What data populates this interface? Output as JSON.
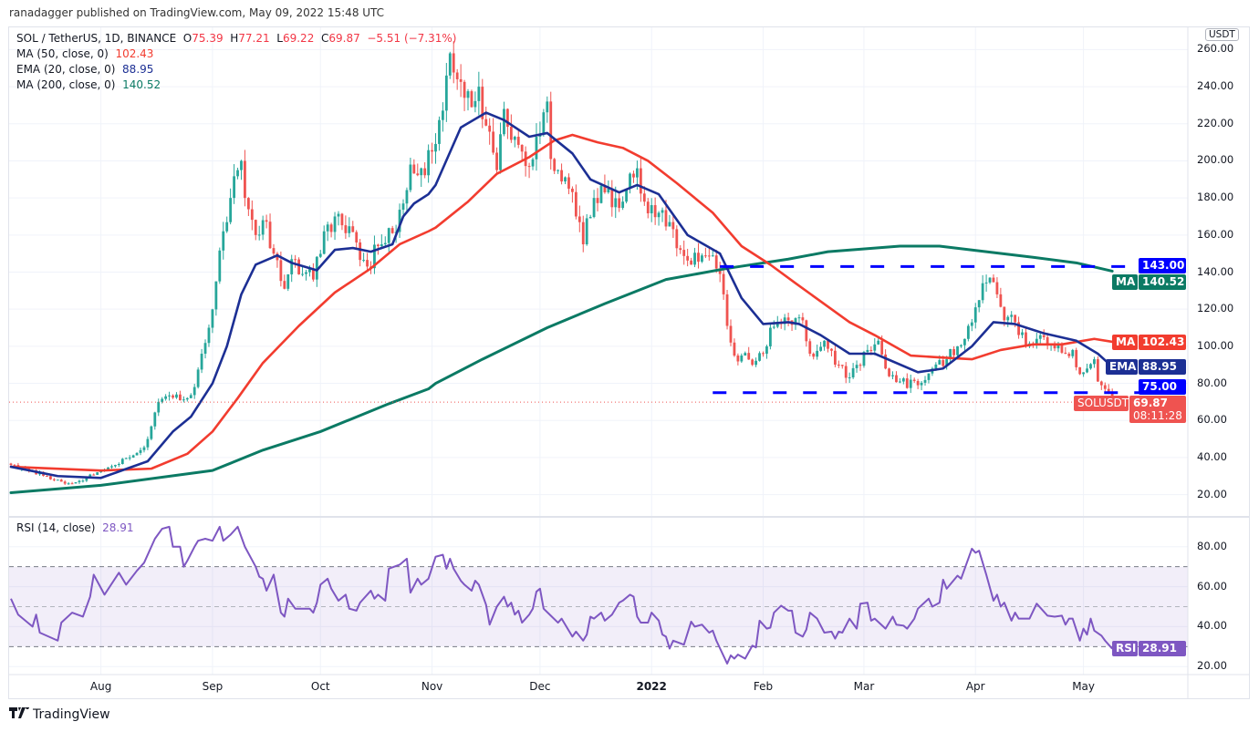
{
  "header": {
    "published": "ranadagger published on TradingView.com, May 09, 2022 15:48 UTC"
  },
  "legend": {
    "symbol": "SOL / TetherUS, 1D, BINANCE",
    "o_label": "O",
    "o": "75.39",
    "h_label": "H",
    "h": "77.21",
    "l_label": "L",
    "l": "69.22",
    "c_label": "C",
    "c": "69.87",
    "change": "−5.51 (−7.31%)",
    "indicators": [
      {
        "label": "MA (50, close, 0)",
        "value": "102.43",
        "color": "#f23c2f"
      },
      {
        "label": "EMA (20, close, 0)",
        "value": "88.95",
        "color": "#1c2f94"
      },
      {
        "label": "MA (200, close, 0)",
        "value": "140.52",
        "color": "#0b7a64"
      }
    ]
  },
  "rsi_legend": {
    "label": "RSI (14, close)",
    "value": "28.91",
    "color": "#7e57c2"
  },
  "axis": {
    "currency": "USDT",
    "price_ticks": [
      "20.00",
      "40.00",
      "60.00",
      "80.00",
      "100.00",
      "120.00",
      "140.00",
      "160.00",
      "180.00",
      "200.00",
      "220.00",
      "240.00",
      "260.00"
    ],
    "rsi_ticks": [
      "20.00",
      "40.00",
      "60.00",
      "80.00"
    ],
    "time_labels": [
      {
        "label": "Aug",
        "date": "2021-08-01"
      },
      {
        "label": "Sep",
        "date": "2021-09-01"
      },
      {
        "label": "Oct",
        "date": "2021-10-01"
      },
      {
        "label": "Nov",
        "date": "2021-11-01"
      },
      {
        "label": "Dec",
        "date": "2021-12-01"
      },
      {
        "label": "2022",
        "date": "2022-01-01",
        "bold": true
      },
      {
        "label": "Feb",
        "date": "2022-02-01"
      },
      {
        "label": "Mar",
        "date": "2022-03-01"
      },
      {
        "label": "Apr",
        "date": "2022-04-01"
      },
      {
        "label": "May",
        "date": "2022-05-01"
      }
    ]
  },
  "tags": {
    "resistance": {
      "value": "143.00",
      "color": "#0000ff"
    },
    "ma200": {
      "name": "MA",
      "value": "140.52",
      "color": "#0b7a64"
    },
    "ma50": {
      "name": "MA",
      "value": "102.43",
      "color": "#f23c2f"
    },
    "ema20": {
      "name": "EMA",
      "value": "88.95",
      "color": "#1c2f94"
    },
    "support": {
      "value": "75.00",
      "color": "#0000ff"
    },
    "last": {
      "name": "SOLUSDT",
      "value": "69.87",
      "countdown": "08:11:28",
      "color": "#ef5350"
    },
    "rsi": {
      "name": "RSI",
      "value": "28.91",
      "color": "#7e57c2"
    }
  },
  "footer": {
    "brand": "TradingView"
  },
  "chart_data": {
    "type": "candlestick",
    "xlim": [
      "2021-07-07",
      "2022-05-30"
    ],
    "ylim": [
      8,
      272
    ],
    "grid": true,
    "colors": {
      "up": "#26a69a",
      "down": "#ef5350",
      "levels": "#0000ff"
    },
    "price_close": {
      "dates": [
        "2021-07-07",
        "2021-07-12",
        "2021-07-17",
        "2021-07-21",
        "2021-07-24",
        "2021-07-28",
        "2021-08-01",
        "2021-08-05",
        "2021-08-09",
        "2021-08-12",
        "2021-08-14",
        "2021-08-17",
        "2021-08-19",
        "2021-08-22",
        "2021-08-25",
        "2021-08-27",
        "2021-08-29",
        "2021-08-31",
        "2021-09-02",
        "2021-09-04",
        "2021-09-06",
        "2021-09-08",
        "2021-09-09",
        "2021-09-10",
        "2021-09-13",
        "2021-09-15",
        "2021-09-18",
        "2021-09-21",
        "2021-09-23",
        "2021-09-26",
        "2021-09-29",
        "2021-10-02",
        "2021-10-05",
        "2021-10-08",
        "2021-10-11",
        "2021-10-14",
        "2021-10-17",
        "2021-10-21",
        "2021-10-24",
        "2021-10-26",
        "2021-10-29",
        "2021-11-01",
        "2021-11-03",
        "2021-11-05",
        "2021-11-06",
        "2021-11-08",
        "2021-11-10",
        "2021-11-12",
        "2021-11-14",
        "2021-11-16",
        "2021-11-19",
        "2021-11-21",
        "2021-11-24",
        "2021-11-26",
        "2021-11-28",
        "2021-11-30",
        "2021-12-03",
        "2021-12-04",
        "2021-12-06",
        "2021-12-09",
        "2021-12-11",
        "2021-12-13",
        "2021-12-16",
        "2021-12-19",
        "2021-12-21",
        "2021-12-25",
        "2021-12-28",
        "2021-12-30",
        "2022-01-03",
        "2022-01-06",
        "2022-01-09",
        "2022-01-12",
        "2022-01-15",
        "2022-01-18",
        "2022-01-20",
        "2022-01-21",
        "2022-01-22",
        "2022-01-24",
        "2022-01-26",
        "2022-01-29",
        "2022-02-01",
        "2022-02-03",
        "2022-02-06",
        "2022-02-08",
        "2022-02-12",
        "2022-02-14",
        "2022-02-18",
        "2022-02-22",
        "2022-02-24",
        "2022-02-27",
        "2022-03-02",
        "2022-03-05",
        "2022-03-07",
        "2022-03-11",
        "2022-03-16",
        "2022-03-20",
        "2022-03-24",
        "2022-03-27",
        "2022-03-30",
        "2022-04-01",
        "2022-04-03",
        "2022-04-05",
        "2022-04-07",
        "2022-04-09",
        "2022-04-12",
        "2022-04-15",
        "2022-04-19",
        "2022-04-22",
        "2022-04-24",
        "2022-04-26",
        "2022-04-28",
        "2022-04-30",
        "2022-05-02",
        "2022-05-04",
        "2022-05-05",
        "2022-05-06",
        "2022-05-07",
        "2022-05-08",
        "2022-05-09"
      ],
      "values": [
        36,
        33,
        30,
        27,
        26,
        29,
        33,
        36,
        40,
        44,
        50,
        70,
        73,
        74,
        72,
        78,
        96,
        110,
        135,
        162,
        180,
        195,
        200,
        180,
        160,
        168,
        150,
        131,
        147,
        139,
        136,
        162,
        170,
        161,
        156,
        143,
        154,
        161,
        177,
        198,
        196,
        205,
        222,
        246,
        258,
        244,
        234,
        229,
        240,
        219,
        195,
        228,
        213,
        205,
        197,
        213,
        232,
        201,
        195,
        185,
        170,
        155,
        180,
        183,
        175,
        185,
        196,
        178,
        172,
        167,
        152,
        144,
        149,
        149,
        139,
        128,
        111,
        95,
        95,
        90,
        96,
        110,
        112,
        114,
        114,
        96,
        103,
        90,
        83,
        90,
        98,
        103,
        88,
        81,
        79,
        88,
        93,
        100,
        111,
        121,
        134,
        137,
        128,
        114,
        113,
        100,
        106,
        101,
        101,
        96,
        98,
        85,
        88,
        93,
        81,
        79,
        77,
        75.39,
        69.87
      ]
    },
    "last_candle": {
      "date": "2022-05-09",
      "open": 75.39,
      "high": 77.21,
      "low": 69.22,
      "close": 69.87,
      "change": -5.51,
      "change_pct": -7.31
    },
    "ma50": {
      "dates": [
        "2021-07-07",
        "2021-08-01",
        "2021-08-15",
        "2021-08-25",
        "2021-09-01",
        "2021-09-08",
        "2021-09-15",
        "2021-09-25",
        "2021-10-05",
        "2021-10-15",
        "2021-10-23",
        "2021-10-31",
        "2021-11-02",
        "2021-11-11",
        "2021-11-19",
        "2021-11-28",
        "2021-12-05",
        "2021-12-10",
        "2021-12-17",
        "2021-12-24",
        "2021-12-31",
        "2022-01-08",
        "2022-01-18",
        "2022-01-26",
        "2022-02-03",
        "2022-02-10",
        "2022-02-25",
        "2022-03-04",
        "2022-03-14",
        "2022-03-22",
        "2022-03-31",
        "2022-04-08",
        "2022-04-17",
        "2022-04-25",
        "2022-05-04",
        "2022-05-09"
      ],
      "values": [
        35,
        33,
        34,
        42,
        54,
        72,
        91,
        111,
        129,
        142,
        155,
        162,
        164,
        178,
        193,
        202,
        211,
        214,
        210,
        207,
        200,
        188,
        172,
        154,
        144,
        134,
        113,
        106,
        95,
        94,
        93,
        98,
        101,
        101,
        104,
        102.43
      ]
    },
    "ema20": {
      "dates": [
        "2021-07-07",
        "2021-07-20",
        "2021-08-01",
        "2021-08-14",
        "2021-08-21",
        "2021-08-26",
        "2021-09-01",
        "2021-09-05",
        "2021-09-09",
        "2021-09-13",
        "2021-09-19",
        "2021-09-23",
        "2021-09-30",
        "2021-10-05",
        "2021-10-10",
        "2021-10-15",
        "2021-10-21",
        "2021-10-24",
        "2021-10-27",
        "2021-10-31",
        "2021-11-02",
        "2021-11-09",
        "2021-11-16",
        "2021-11-21",
        "2021-11-28",
        "2021-12-03",
        "2021-12-10",
        "2021-12-15",
        "2021-12-23",
        "2021-12-28",
        "2022-01-03",
        "2022-01-11",
        "2022-01-20",
        "2022-01-26",
        "2022-02-01",
        "2022-02-08",
        "2022-02-11",
        "2022-02-17",
        "2022-02-25",
        "2022-03-04",
        "2022-03-16",
        "2022-03-23",
        "2022-03-31",
        "2022-04-06",
        "2022-04-12",
        "2022-04-20",
        "2022-04-29",
        "2022-05-05",
        "2022-05-09"
      ],
      "values": [
        35,
        30,
        29,
        38,
        54,
        62,
        80,
        100,
        128,
        144,
        149,
        145,
        141,
        152,
        153,
        151,
        155,
        170,
        177,
        182,
        187,
        218,
        226,
        222,
        213,
        215,
        204,
        190,
        183,
        187,
        182,
        160,
        150,
        126,
        112,
        113,
        112,
        106,
        96,
        96,
        86,
        88,
        100,
        113,
        112,
        107,
        103,
        96,
        88.95
      ]
    },
    "ma200": {
      "dates": [
        "2021-07-07",
        "2021-08-01",
        "2021-09-01",
        "2021-09-15",
        "2021-10-01",
        "2021-10-20",
        "2021-10-31",
        "2021-11-02",
        "2021-11-15",
        "2021-12-03",
        "2021-12-19",
        "2022-01-05",
        "2022-01-22",
        "2022-02-08",
        "2022-02-19",
        "2022-03-11",
        "2022-03-22",
        "2022-04-04",
        "2022-04-17",
        "2022-04-29",
        "2022-05-09"
      ],
      "values": [
        21,
        25,
        33,
        44,
        54,
        69,
        77,
        80,
        93,
        110,
        123,
        136,
        142,
        147,
        151,
        154,
        154,
        151,
        148,
        145,
        140.52
      ]
    },
    "levels": [
      {
        "value": 143,
        "from": "2022-01-20"
      },
      {
        "value": 75,
        "from": "2022-01-18"
      }
    ],
    "rsi": {
      "ylim": [
        16,
        94.5
      ],
      "bands": [
        30,
        50,
        70
      ],
      "dates": [
        "2021-07-07",
        "2021-07-09",
        "2021-07-13",
        "2021-07-14",
        "2021-07-15",
        "2021-07-20",
        "2021-07-21",
        "2021-07-24",
        "2021-07-27",
        "2021-07-29",
        "2021-07-30",
        "2021-08-02",
        "2021-08-06",
        "2021-08-08",
        "2021-08-11",
        "2021-08-13",
        "2021-08-16",
        "2021-08-18",
        "2021-08-20",
        "2021-08-21",
        "2021-08-23",
        "2021-08-24",
        "2021-08-25",
        "2021-08-27",
        "2021-08-28",
        "2021-08-30",
        "2021-09-01",
        "2021-09-03",
        "2021-09-04",
        "2021-09-06",
        "2021-09-08",
        "2021-09-10",
        "2021-09-13",
        "2021-09-14",
        "2021-09-15",
        "2021-09-16",
        "2021-09-18",
        "2021-09-20",
        "2021-09-21",
        "2021-09-22",
        "2021-09-24",
        "2021-09-28",
        "2021-09-29",
        "2021-09-30",
        "2021-10-01",
        "2021-10-03",
        "2021-10-04",
        "2021-10-06",
        "2021-10-08",
        "2021-10-09",
        "2021-10-11",
        "2021-10-12",
        "2021-10-15",
        "2021-10-16",
        "2021-10-17",
        "2021-10-19",
        "2021-10-20",
        "2021-10-23",
        "2021-10-25",
        "2021-10-26",
        "2021-10-28",
        "2021-10-29",
        "2021-10-31",
        "2021-11-02",
        "2021-11-04",
        "2021-11-05",
        "2021-11-06",
        "2021-11-07",
        "2021-11-09",
        "2021-11-10",
        "2021-11-12",
        "2021-11-13",
        "2021-11-14",
        "2021-11-16",
        "2021-11-17",
        "2021-11-19",
        "2021-11-21",
        "2021-11-22",
        "2021-11-23",
        "2021-11-24",
        "2021-11-25",
        "2021-11-26",
        "2021-11-28",
        "2021-11-29",
        "2021-11-30",
        "2021-12-01",
        "2021-12-02",
        "2021-12-04",
        "2021-12-06",
        "2021-12-07",
        "2021-12-10",
        "2021-12-11",
        "2021-12-13",
        "2021-12-14",
        "2021-12-15",
        "2021-12-16",
        "2021-12-18",
        "2021-12-19",
        "2021-12-21",
        "2021-12-23",
        "2021-12-24",
        "2021-12-26",
        "2021-12-27",
        "2021-12-28",
        "2021-12-29",
        "2021-12-31",
        "2022-01-01",
        "2022-01-03",
        "2022-01-04",
        "2022-01-05",
        "2022-01-06",
        "2022-01-07",
        "2022-01-10",
        "2022-01-12",
        "2022-01-13",
        "2022-01-15",
        "2022-01-17",
        "2022-01-18",
        "2022-01-19",
        "2022-01-22",
        "2022-01-23",
        "2022-01-24",
        "2022-01-25",
        "2022-01-27",
        "2022-01-29",
        "2022-01-30",
        "2022-01-31",
        "2022-02-02",
        "2022-02-03",
        "2022-02-04",
        "2022-02-06",
        "2022-02-08",
        "2022-02-09",
        "2022-02-10",
        "2022-02-12",
        "2022-02-13",
        "2022-02-14",
        "2022-02-16",
        "2022-02-18",
        "2022-02-20",
        "2022-02-21",
        "2022-02-22",
        "2022-02-23",
        "2022-02-25",
        "2022-02-27",
        "2022-02-28",
        "2022-03-02",
        "2022-03-03",
        "2022-03-04",
        "2022-03-07",
        "2022-03-09",
        "2022-03-10",
        "2022-03-12",
        "2022-03-13",
        "2022-03-15",
        "2022-03-16",
        "2022-03-19",
        "2022-03-20",
        "2022-03-22",
        "2022-03-23",
        "2022-03-24",
        "2022-03-27",
        "2022-03-28",
        "2022-03-30",
        "2022-03-31",
        "2022-04-01",
        "2022-04-02",
        "2022-04-04",
        "2022-04-06",
        "2022-04-07",
        "2022-04-08",
        "2022-04-09",
        "2022-04-11",
        "2022-04-12",
        "2022-04-13",
        "2022-04-16",
        "2022-04-18",
        "2022-04-21",
        "2022-04-23",
        "2022-04-25",
        "2022-04-26",
        "2022-04-27",
        "2022-04-28",
        "2022-04-30",
        "2022-05-01",
        "2022-05-02",
        "2022-05-03",
        "2022-05-04",
        "2022-05-06",
        "2022-05-07",
        "2022-05-09"
      ],
      "values": [
        54,
        46,
        40,
        46,
        37,
        33,
        42,
        47,
        45,
        55,
        66,
        56,
        67,
        61,
        68,
        72,
        84,
        89,
        90,
        80,
        80,
        70,
        73,
        80,
        83,
        84,
        83,
        90,
        83,
        86,
        90,
        80,
        70,
        65,
        64,
        58,
        66,
        47,
        45,
        54,
        49,
        49,
        47,
        52,
        61,
        64,
        59,
        53,
        56,
        49,
        48,
        52,
        58,
        54,
        56,
        53,
        69,
        71,
        74,
        57,
        64,
        61,
        64,
        75,
        76,
        69,
        74,
        69,
        63,
        61,
        58,
        63,
        61,
        51,
        41,
        50,
        55,
        50,
        52,
        46,
        48,
        42,
        46,
        49,
        57.5,
        59,
        49,
        45.5,
        42,
        44,
        35,
        37.5,
        33,
        36,
        45,
        44,
        47,
        43,
        46,
        52,
        53,
        56,
        55,
        45,
        42,
        42,
        47,
        43,
        36,
        35,
        29,
        33,
        31,
        42.5,
        40,
        41,
        37,
        38,
        33,
        21.5,
        25.6,
        24,
        26,
        24,
        30.5,
        29.6,
        43,
        39,
        39.5,
        47,
        50.5,
        48,
        48,
        37,
        35,
        38.5,
        47,
        44,
        37,
        37.5,
        34,
        37.5,
        37,
        44,
        39,
        51.5,
        52,
        43,
        44,
        39,
        45,
        41,
        40.5,
        39,
        44,
        49,
        54,
        50,
        52,
        63.5,
        59,
        65.5,
        64,
        74,
        79,
        77,
        78,
        66,
        53,
        56,
        50,
        52,
        43,
        47,
        44,
        44,
        51.5,
        45.5,
        45,
        45.5,
        41,
        44,
        44,
        33,
        39,
        36,
        44,
        38,
        35.5,
        33,
        28.91
      ]
    }
  }
}
